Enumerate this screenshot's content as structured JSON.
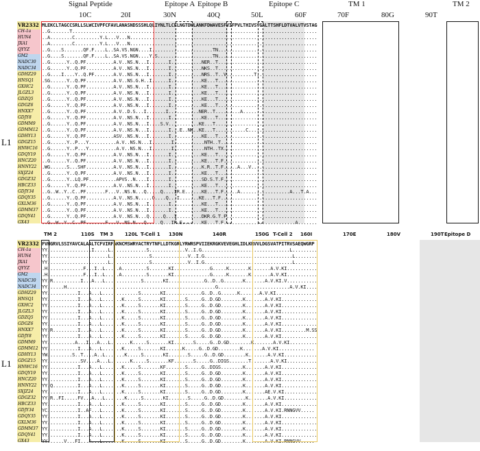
{
  "panel1": {
    "group_label": "L1",
    "regions": [
      "Signal Peptide",
      "Epitope A",
      "Epitope B",
      "Epitope C",
      "TM 1",
      "TM 2"
    ],
    "ticks": [
      "10C",
      "20I",
      "30N",
      "40Q",
      "50L",
      "60F",
      "70F",
      "80G",
      "90T"
    ],
    "strains": [
      "VR2332",
      "CH-1a",
      "HUN4",
      "JXA1",
      "QYYZ",
      "GM2",
      "NADC30",
      "NADC34",
      "GDHZ29",
      "HNSQ1",
      "GXHC2",
      "JLGZL3",
      "GDZQ5",
      "GDGZ6",
      "HNXX7",
      "GDJY8",
      "GDMM9",
      "GDMM12",
      "GDHY13",
      "GDGZ15",
      "HNWC16",
      "GDQY19",
      "HNCZ20",
      "HNNY22",
      "SXJZ24",
      "GDGZ32",
      "HBCZ33",
      "GDJY34",
      "GDQY35",
      "GXLM36",
      "GDMM37",
      "GDQY41",
      "GX43"
    ],
    "sequences": [
      "MLEKCLTAGCCSRLLSLWCIVPFCFAVLANASNDSSSHLQLIYNLTLCELNGTDWLANKFDWAVESFVIFPVLTHIVSYGALTTSHFLDTVALVTVSTAG",
      "..G.......T...........................................................................................",
      "..A........C.........Y.L...V...N..............................................................................",
      "..A........C.........Y.L...V...N..............................................................................",
      "..G....S.......QF.F....L..SA.VS.NGN....I......................TN...........................................",
      "..G....S.......QF.F....L..SA.VS.NGN....Y.S....................TN...........................................",
      "..G......Y..Q.PF..........A.V..NS.N...I.......I...........NER..T..........................................",
      "..G......Y..Q.PF..........A.V..NS.N...I.......I...........NKS..T..........................................",
      "..G....I....Y..Q.PF.......A.V..NS.N...I.......I...........NRS..T..V..........T........................F...",
      ".SG......Y..Q.PF..........A.V..NS.G.H..I......I...........KE...T..........................................",
      "..G......Y..Q.PF..........A.V..NS.N...I.......I...........KE...T..........................................",
      "..G......Y..Q.PF..........A.V..NS.N...I.......I...........KE...T..........................................",
      "..G......Y..Q.PF..........A.V..NS.N...I.......I...........KE...T..........................................",
      "..G......Y..Q.PF..........A.V..NS.N...I.......I...........KE...T..........................................",
      "..G......Y..Q.PF..........A.V..D.S...I.......I...........NER..T.........A................................",
      "..G......Y..Q.PF..........A.V..NS.N...I.......I...........KE...T..........................................",
      "..G......Y..Q.PF..........A.V..NS.N...I....S.V...........KE...T..........................................",
      "..G......Y..Q.PF..........A.V..NS.N...I.......I...E..NK..KE...T...........C.............................",
      "..G......Y..Q.PF..........ASV..NS.N...I.......I...........KE...T..........................................",
      "..G......Y..P...Y..........A.V..NS.N...I.......I...........NTH..T..........................................",
      "..G......Y..P...Y..........A.V..NS.N...I.......I...........NTH..TX.........................................",
      "..G......Y..Q.PF..........A.V..NS.N...I.......I...........KE...T..........................................",
      "..G......Y..Q.PF..........A.V..NS.N...I.......I...........KE...T.F........................................",
      ".WG......S...SHF..........A.V..NS.N...I.......I...........K.R..T.F.....A...V.............................",
      "..G......Y..Q.PF..........A.V..NS.N...I.......I...........KE...T..........................................",
      "..G......Y..LQ.PF..........APVS..N....I.......I...........SD.S.T.F........................................",
      "..G......Y..Q.PF..........A.V..NS.N...I.......I...........KE...T..........................................",
      "..G..W..Y..C..PF.......F...V..NS.N...Q.....Q....IR.E......KE...T.F.....A..................A...T.A........",
      "..G......Y..Q.PF..........A.V..NS.N.....Q....Q...I.......KE...T.F........................................",
      "..G......Y..Q.PF..........A.V..NS.N...I.......I...........KE...T..........................................",
      "..G......Y..Q.PF..........A.V..NS.N...I.......I...........KE...T..........................................",
      "..G......Y..Q.PF..........A.V..NS.N...Q.....Q...I.........DKR.G.T.F.......................................",
      "..G..W..Y..C..PF.......F...V..NS.N...Q.....Q...IR.E.......KE...T.F..........................A............"
    ]
  },
  "panel2": {
    "group_label": "L1",
    "regions": [
      "TM 2",
      "TM 3",
      "T-Cell 1",
      "T-Cell 2",
      "Epitope D"
    ],
    "ticks": [
      "110S",
      "120L",
      "130N",
      "140R",
      "150G",
      "160I",
      "170E",
      "180V",
      "190T"
    ],
    "strains": [
      "VR2332",
      "CH-1a",
      "HUN4",
      "JXA1",
      "QYYZ",
      "GM2",
      "NADC30",
      "NADC34",
      "GDHZ29",
      "HNSQ1",
      "GXHC2",
      "JLGZL3",
      "GDZQ5",
      "GDGZ6",
      "HNXX7",
      "GDJY8",
      "GDMM9",
      "GDMM12",
      "GDHY13",
      "GDGZ15",
      "HNWC16",
      "GDQY19",
      "HNCZ20",
      "HNNY22",
      "SXJZ24",
      "GDGZ32",
      "HBCZ33",
      "GDJY34",
      "GDQY35",
      "GXLM36",
      "GDMM37",
      "GDQY41",
      "GX43"
    ],
    "sequences": [
      "FVHGRVLSSIYAVCALAALTCFVIRFAKNCMSWRYACTRYTNFLLDTKGRLYRWRSPVIIEKRGKVEVEGHLIDLKRVVLDGSVATPITRVSAEQWGRP",
      "YY................I.....L.............S.............V..I.G................................L...........",
      "YY......................L..............S.............V..I.G................................L...........",
      "YY......................L..............S.............V..I.G................................L...........",
      ".H.............F...I..L.....A.........S.......KI.............G.....K.......K.......A.V.KI..............",
      ".H.............F...I..L.....A.........S.......KI.............G.....K.......K.......A.V.KI..............",
      "YY.R..........I...A...L.............S.......KI.............G..D..G.......K.......A.V.KI.V............",
      "YY......H......................................................G..........................A.V.KI..........",
      "YY...........I...A...L.............S.......KI.............G..D..G......K.......A.V.KI...............",
      "YY...........I...A...L.......K.....S.......KI.......S.....G..D.GD........K.......A.V.KI.............",
      "YY...........I...A...L.......K.....S.......KI.......S.....G..D.GD........K.......A.V.KI.............",
      "YY...........I...A...L.......K.....S.......KI.......S.....G..D.GD........K.......A.V.KI.............",
      "YY...........I...A...L.......K.....S.......KI.......S.....G..D.GD........K.......A.V.KI.............",
      "YY...........I...A...L.......K.....S.......KI.......S.....G..D.GD........K.......A.V.KI.............",
      "YY.R.........I...A...L.......K.....S.......KI.......S.....G..D.GD........K.......A.V.KI.........M.SS",
      "YY...........I...A...L.......K.....S.......KI.......S.....G..D.GD........K.......A.V.KI.............",
      "YY..........A...I...A...L.......K.....S.......KI.......S.....G..D.GD........K.......A.V.KI..........",
      "YY...........I...A...L.......K.....S.......KI......K.....G..D.GD........K.......A.V.KI.............",
      "YW.........S..T....A..L.......K.....S.......KI.......S.....G..D.GD........K.......A.V.KI.............",
      "YY............SV....A...L.......K.....S.......KF.......S.....G..DIGS.......T.......A.V.KI.............",
      "YY...........I...A...L.......K.....S.......KF.......S.....G..DIGS........K.......A.V.KI.............",
      "YY...........I...A...L.......K.....S.......KI.......S.....G..D.GD........K.......A.V.KI.............",
      "YY...........I...A...L.......K.....S.......KI.......S.....G..D.GD........K.......A.V.KI.............",
      "YY.Q.........I...A...L.......K.....S.......KI.......S.....G..D.GD........K.......A.V.KI.............",
      "YY...........I...A...L.......K.....S.......KI.......S.....G..D.GD........K.......AE.V.KI............",
      "YY.R..FI.....FV...A...L.......K.....S.......KI.......S.....G..D.GD........K.......A.V.KI.............",
      "YY...........I...A...L.......K.....S.......KI.......S.....G..D.GD........K.......A.V.KI.............",
      "YC...........I..AF...L.......K.....S.......KI.......S.....G..D.GD........K.......A.V.KI.RNNGVV.....",
      "YY...........I...A...L.......K.....S.......KI.......S.....G..D.GD........K.......A.V.KI.............",
      "YY...........I...A...L.......K.....S.......KI.......S.....G..D.GD........K.......A.V.KI.............",
      "YY...........I...A...L.......K.....S.......KI.......S.....G..D.GD........K.......A.V.KI.............",
      "YY...........I...A...L.......K.....S.......KI.......S.....G..D.GD........K.......A.V.KI.............",
      "YY......V...FI...A...L.......K.....S.......KI.......S.....G..D.GD........K.......A.V.KI.RNNGVV....."
    ]
  },
  "colors": {
    "ref": "#f2e8a0",
    "classic_hp": "#f6c6cc",
    "hp_other": "#bfd6ee",
    "lineage1": "#f6eda8",
    "signal": "#e02020",
    "tcell": "#e9c75a",
    "box": "#111111",
    "shade": "#e6e6e6"
  }
}
